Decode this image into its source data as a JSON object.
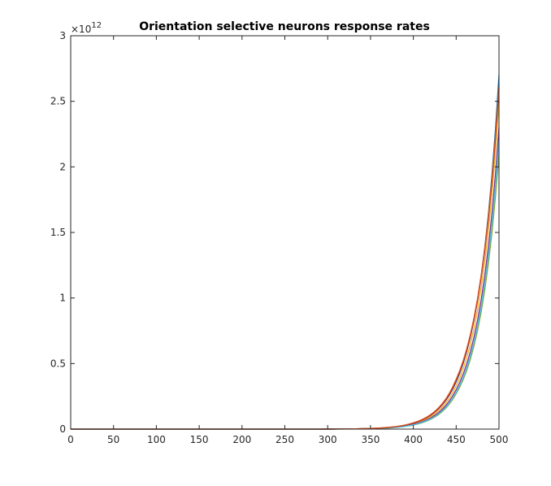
{
  "chart_data": {
    "type": "line",
    "title": "Orientation selective neurons response rates",
    "xlabel": "",
    "ylabel": "",
    "xlim": [
      0,
      500
    ],
    "ylim": [
      0,
      3000000000000.0
    ],
    "x_ticks": [
      0,
      50,
      100,
      150,
      200,
      250,
      300,
      350,
      400,
      450,
      500
    ],
    "y_ticks": [
      0,
      0.5,
      1,
      1.5,
      2,
      2.5,
      3
    ],
    "y_tick_labels": [
      "0",
      "0.5",
      "1",
      "1.5",
      "2",
      "2.5",
      "3"
    ],
    "y_exponent_base": "×10",
    "y_exponent_power": "12",
    "grid": false,
    "legend": "none",
    "series": [
      {
        "color": "#0072BD",
        "values": [
          0,
          0,
          0,
          0,
          0,
          0,
          0.0004,
          0.0052,
          0.046,
          0.36,
          2.7
        ]
      },
      {
        "color": "#EDB120",
        "values": [
          0,
          0,
          0,
          0,
          0,
          0,
          0.0003,
          0.0044,
          0.04,
          0.33,
          2.5
        ]
      },
      {
        "color": "#7E2F8E",
        "values": [
          0,
          0,
          0,
          0,
          0,
          0,
          0.0003,
          0.004,
          0.036,
          0.3,
          2.3
        ]
      },
      {
        "color": "#77AC30",
        "values": [
          0,
          0,
          0,
          0,
          0,
          0,
          0.0002,
          0.0034,
          0.031,
          0.27,
          2.1
        ]
      },
      {
        "color": "#4DBEEE",
        "values": [
          0,
          0,
          0,
          0,
          0,
          0,
          0.0003,
          0.0037,
          0.033,
          0.28,
          2.2
        ]
      },
      {
        "color": "#A2142F",
        "values": [
          0,
          0,
          0,
          0,
          0,
          0,
          0.0004,
          0.005,
          0.045,
          0.37,
          2.6
        ]
      },
      {
        "color": "#D95319",
        "values": [
          0,
          0,
          0,
          0,
          0,
          0,
          0.0004,
          0.0054,
          0.048,
          0.38,
          2.62
        ]
      }
    ],
    "series_x": [
      0,
      50,
      100,
      150,
      200,
      250,
      300,
      350,
      400,
      450,
      500
    ]
  }
}
